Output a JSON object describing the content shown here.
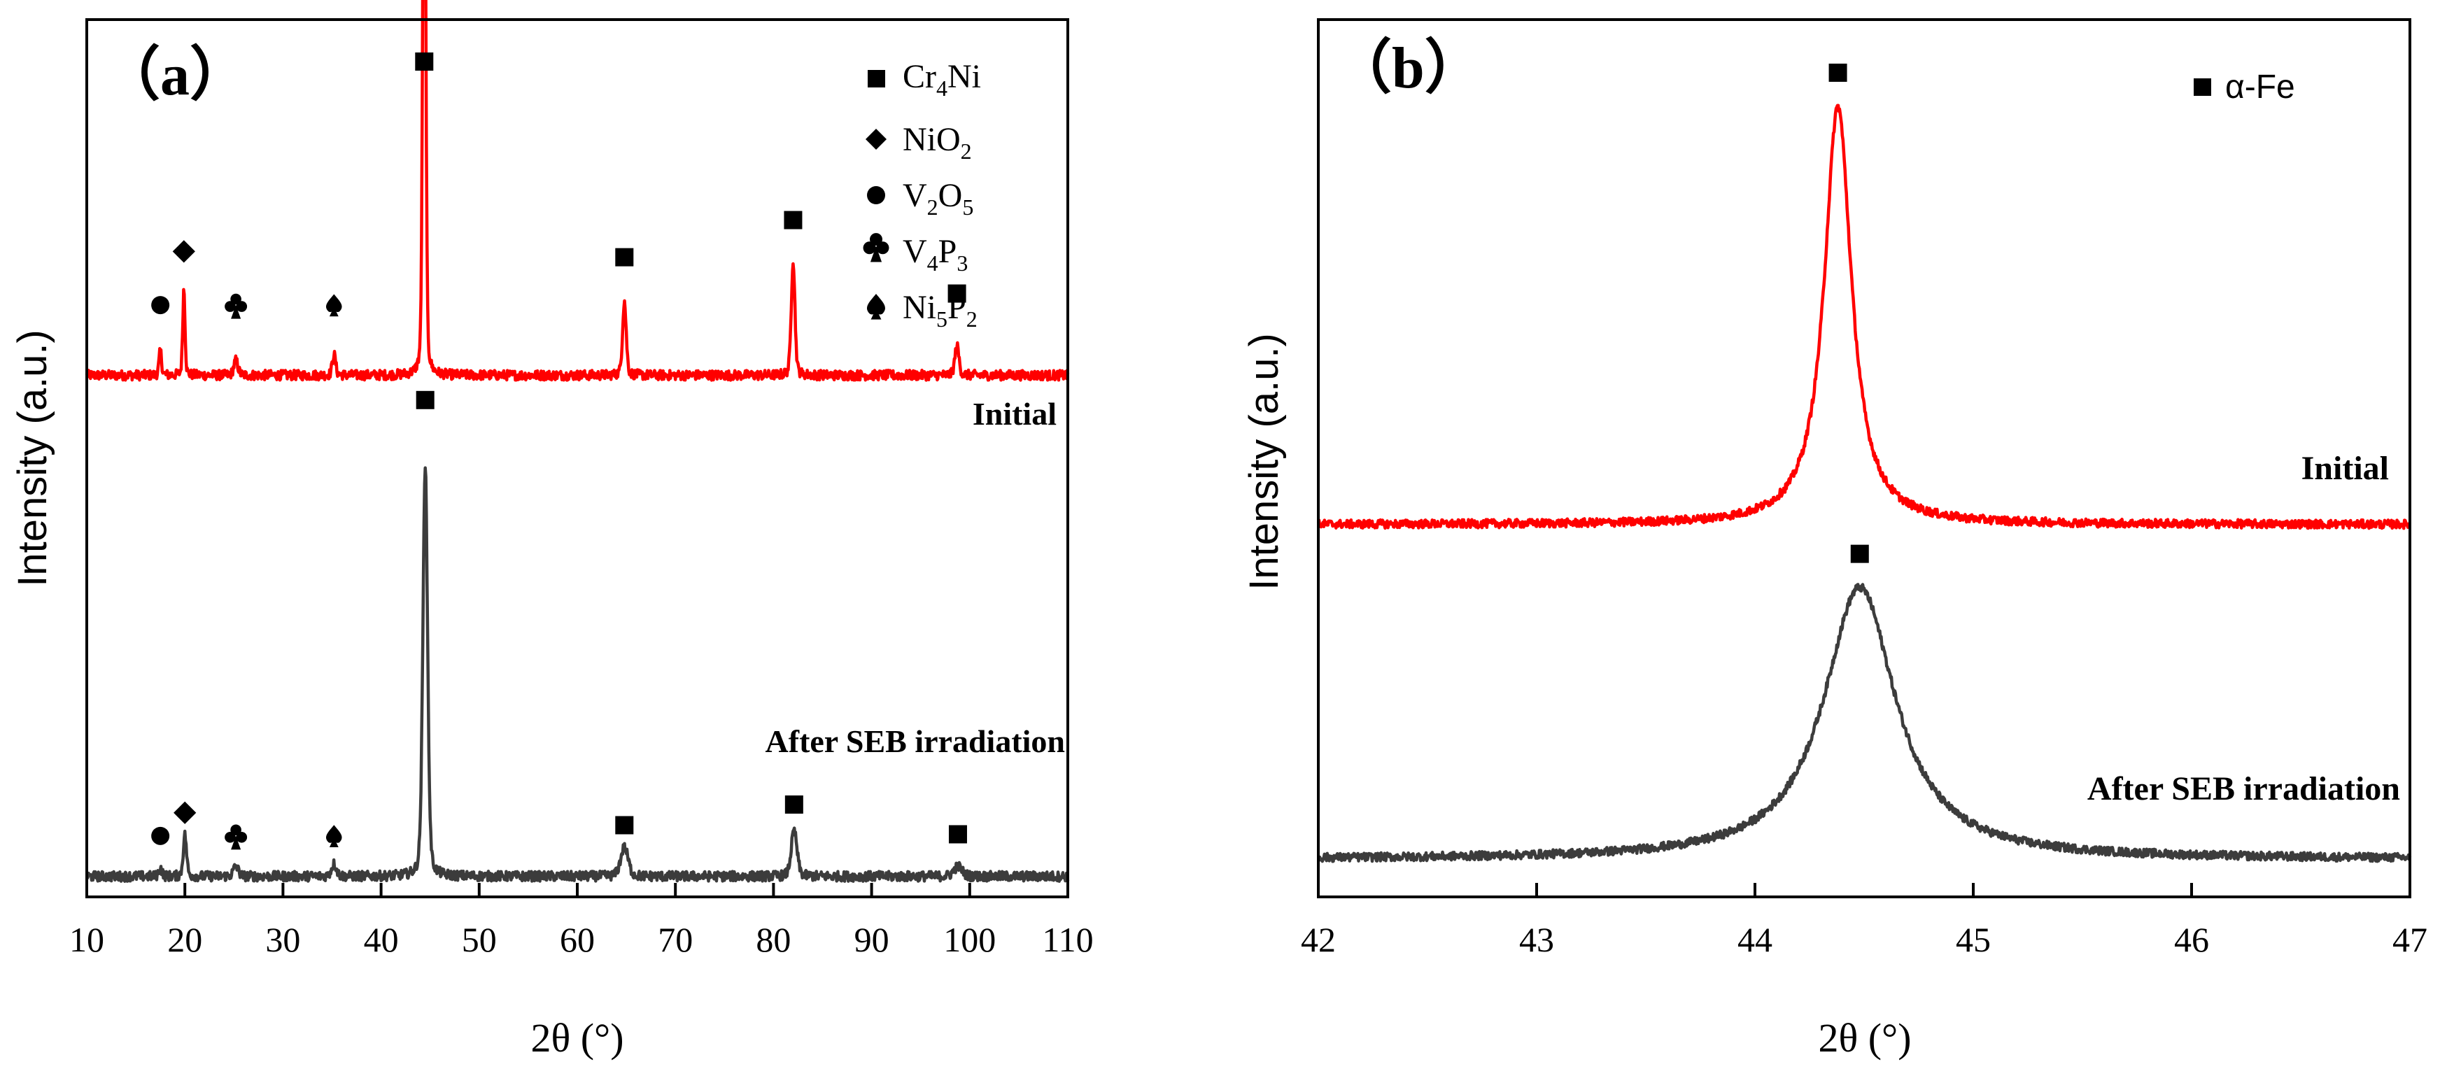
{
  "chart_data": [
    {
      "panel_label": "（a）",
      "type": "line",
      "xlabel": "2θ (°)",
      "ylabel": "Intensity (a.u.)",
      "xlim": [
        10,
        110
      ],
      "x_ticks": [
        "10",
        "20",
        "30",
        "40",
        "50",
        "60",
        "70",
        "80",
        "90",
        "100",
        "110"
      ],
      "colors": {
        "initial": "#ff0000",
        "after": "#3c3c3c"
      },
      "legend": [
        {
          "marker": "square",
          "symbol": "■",
          "label": "Cr",
          "sub": "4",
          "tail": "Ni"
        },
        {
          "marker": "diamond",
          "symbol": "◆",
          "label": "NiO",
          "sub": "2",
          "tail": ""
        },
        {
          "marker": "circle",
          "symbol": "●",
          "label": "V",
          "sub": "2",
          "label2": "O",
          "sub2": "5"
        },
        {
          "marker": "club",
          "symbol": "♣",
          "label": "V",
          "sub": "4",
          "label2": "P",
          "sub2": "3"
        },
        {
          "marker": "spade",
          "symbol": "♠",
          "label": "Ni",
          "sub": "5",
          "label2": "P",
          "sub2": "2"
        }
      ],
      "series": [
        {
          "name": "Initial",
          "baseline": 0.62,
          "noise": 0.006,
          "peaks": [
            {
              "x": 17.5,
              "h": 0.03,
              "w": 0.15
            },
            {
              "x": 19.9,
              "h": 0.105,
              "w": 0.14
            },
            {
              "x": 25.2,
              "h": 0.018,
              "w": 0.25
            },
            {
              "x": 35.2,
              "h": 0.025,
              "w": 0.2
            },
            {
              "x": 44.4,
              "h": 0.86,
              "w": 0.17
            },
            {
              "x": 64.8,
              "h": 0.09,
              "w": 0.22
            },
            {
              "x": 82.0,
              "h": 0.14,
              "w": 0.22
            },
            {
              "x": 98.7,
              "h": 0.035,
              "w": 0.25
            }
          ],
          "annotations": [
            {
              "x": 44.4,
              "marker": "square",
              "y": 1.0
            },
            {
              "x": 17.5,
              "marker": "circle",
              "y": 0.705
            },
            {
              "x": 19.9,
              "marker": "diamond",
              "y": 0.77
            },
            {
              "x": 25.2,
              "marker": "club",
              "y": 0.705
            },
            {
              "x": 35.2,
              "marker": "spade",
              "y": 0.705
            },
            {
              "x": 64.8,
              "marker": "square",
              "y": 0.763
            },
            {
              "x": 82.0,
              "marker": "square",
              "y": 0.808
            },
            {
              "x": 98.7,
              "marker": "square",
              "y": 0.719
            }
          ]
        },
        {
          "name": "After SEB irradiation",
          "baseline": 0.013,
          "noise": 0.006,
          "peaks": [
            {
              "x": 17.5,
              "h": 0.01,
              "w": 0.2
            },
            {
              "x": 20.0,
              "h": 0.05,
              "w": 0.2
            },
            {
              "x": 25.2,
              "h": 0.012,
              "w": 0.3
            },
            {
              "x": 35.2,
              "h": 0.015,
              "w": 0.3
            },
            {
              "x": 44.5,
              "h": 0.5,
              "w": 0.28
            },
            {
              "x": 64.8,
              "h": 0.035,
              "w": 0.45
            },
            {
              "x": 82.1,
              "h": 0.055,
              "w": 0.35
            },
            {
              "x": 98.8,
              "h": 0.012,
              "w": 0.5
            }
          ],
          "annotations": [
            {
              "x": 44.5,
              "marker": "square",
              "y": 0.59
            },
            {
              "x": 17.5,
              "marker": "circle",
              "y": 0.062
            },
            {
              "x": 20.0,
              "marker": "diamond",
              "y": 0.09
            },
            {
              "x": 25.2,
              "marker": "club",
              "y": 0.062
            },
            {
              "x": 35.2,
              "marker": "spade",
              "y": 0.062
            },
            {
              "x": 64.8,
              "marker": "square",
              "y": 0.075
            },
            {
              "x": 82.1,
              "marker": "square",
              "y": 0.1
            },
            {
              "x": 98.8,
              "marker": "square",
              "y": 0.064
            }
          ]
        }
      ]
    },
    {
      "panel_label": "（b）",
      "type": "line",
      "xlabel": "2θ (°)",
      "ylabel": "Intensity (a.u.)",
      "xlim": [
        42,
        47
      ],
      "x_ticks": [
        "42",
        "43",
        "44",
        "45",
        "46",
        "47"
      ],
      "colors": {
        "initial": "#ff0000",
        "after": "#3c3c3c"
      },
      "legend": [
        {
          "marker": "square",
          "symbol": "■",
          "label": "α-Fe"
        }
      ],
      "series": [
        {
          "name": "Initial",
          "baseline": 0.445,
          "noise": 0.005,
          "peaks": [
            {
              "x": 44.38,
              "h": 0.5,
              "w": 0.075,
              "shape": "lorentz"
            }
          ],
          "annotations": [
            {
              "x": 44.38,
              "marker": "square",
              "y": 0.985
            }
          ]
        },
        {
          "name": "After SEB irradiation",
          "baseline": 0.045,
          "noise": 0.005,
          "peaks": [
            {
              "x": 44.48,
              "h": 0.325,
              "w": 0.2,
              "shape": "lorentz"
            }
          ],
          "annotations": [
            {
              "x": 44.48,
              "marker": "square",
              "y": 0.41
            }
          ]
        }
      ]
    }
  ]
}
